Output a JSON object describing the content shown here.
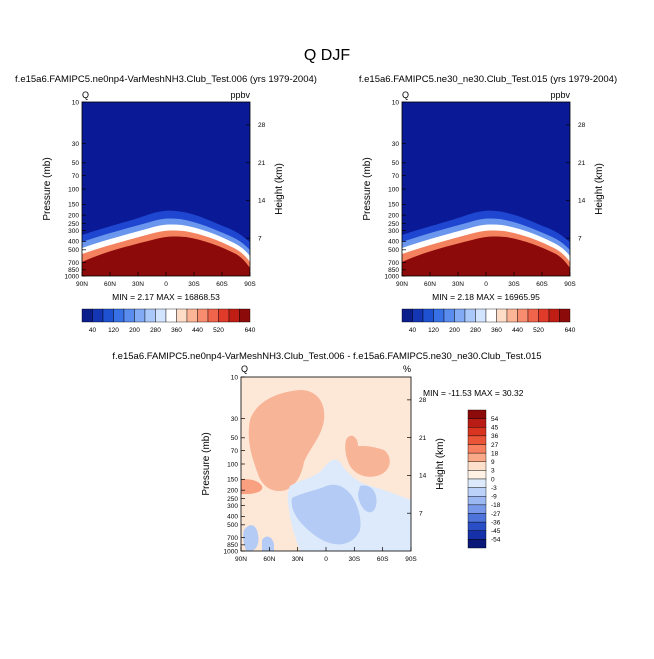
{
  "chart_data": [
    {
      "type": "heatmap",
      "panel": "top-left",
      "main_title": "Q DJF",
      "title": "f.e15a6.FAMIPC5.ne0np4-VarMeshNH3.Club_Test.006 (yrs 1979-2004)",
      "left_string": "Q",
      "right_string": "ppbv",
      "xlabel": "",
      "ylabel": "Pressure (mb)",
      "ylabel_right": "Height (km)",
      "x_ticks": [
        "90N",
        "60N",
        "30N",
        "0",
        "30S",
        "60S",
        "90S"
      ],
      "y_ticks": [
        "10",
        "30",
        "50",
        "70",
        "100",
        "150",
        "200",
        "250",
        "300",
        "400",
        "500",
        "700",
        "850",
        "1000"
      ],
      "y_right_ticks": [
        "28",
        "21",
        "14",
        "7"
      ],
      "stats": "MIN =   2.17  MAX = 16868.53",
      "field": "tropospheric moisture maximum (>640 ppbv) below ~300-400 mb, rising toward the tropics; stratosphere <40 ppbv"
    },
    {
      "type": "heatmap",
      "panel": "top-right",
      "title": "f.e15a6.FAMIPC5.ne30_ne30.Club_Test.015 (yrs 1979-2004)",
      "left_string": "Q",
      "right_string": "ppbv",
      "xlabel": "",
      "ylabel": "Pressure (mb)",
      "ylabel_right": "Height (km)",
      "x_ticks": [
        "90N",
        "60N",
        "30N",
        "0",
        "30S",
        "60S",
        "90S"
      ],
      "y_ticks": [
        "10",
        "30",
        "50",
        "70",
        "100",
        "150",
        "200",
        "250",
        "300",
        "400",
        "500",
        "700",
        "850",
        "1000"
      ],
      "y_right_ticks": [
        "28",
        "21",
        "14",
        "7"
      ],
      "stats": "MIN =   2.18  MAX = 16965.95",
      "field": "nearly identical to the first panel"
    },
    {
      "type": "colorbar",
      "panel": "top-shared-labelbar",
      "labels": [
        "40",
        "120",
        "200",
        "280",
        "360",
        "440",
        "520",
        "640"
      ],
      "colors": [
        "#0a1e8c",
        "#1436b4",
        "#1e50d2",
        "#3870e6",
        "#5a8cf0",
        "#82aaf5",
        "#aac8fa",
        "#d2e4ff",
        "#ffffff",
        "#ffdcc8",
        "#fcb496",
        "#f88c6e",
        "#f0644b",
        "#e03a2a",
        "#c01e14",
        "#8c0a0a"
      ]
    },
    {
      "type": "heatmap",
      "panel": "bottom-difference",
      "title": "f.e15a6.FAMIPC5.ne0np4-VarMeshNH3.Club_Test.006 - f.e15a6.FAMIPC5.ne30_ne30.Club_Test.015",
      "left_string": "Q",
      "right_string": "%",
      "xlabel": "",
      "ylabel": "Pressure (mb)",
      "ylabel_right": "Height (km)",
      "x_ticks": [
        "90N",
        "60N",
        "30N",
        "0",
        "30S",
        "60S",
        "90S"
      ],
      "y_ticks": [
        "10",
        "30",
        "50",
        "70",
        "100",
        "150",
        "200",
        "250",
        "300",
        "400",
        "500",
        "700",
        "850",
        "1000"
      ],
      "y_right_ticks": [
        "28",
        "21",
        "14",
        "7"
      ],
      "stats": "MIN = -11.53  MAX =  30.32",
      "levels": [
        54,
        45,
        36,
        27,
        18,
        9,
        3,
        0,
        -3,
        -9,
        -18,
        -27,
        -36,
        -45,
        -54
      ],
      "colors": [
        "#8c0a0a",
        "#b81c14",
        "#d83420",
        "#ea5538",
        "#f68060",
        "#f9a888",
        "#fde0cc",
        "#fff1e4",
        "#dceafc",
        "#bcd2f8",
        "#9cb8f3",
        "#7898ea",
        "#4e74dc",
        "#2a4ec6",
        "#1530a8",
        "#0a1878"
      ],
      "field": "mostly 0 to 3 %; positive 9-18 % blob 60N-0 from 30-100 mb and near 30S-60S 50-100 mb; small 9 % patch 90N-75N near 150 mb; negative -3 to -9 % in tropics 150-700 mb"
    }
  ]
}
